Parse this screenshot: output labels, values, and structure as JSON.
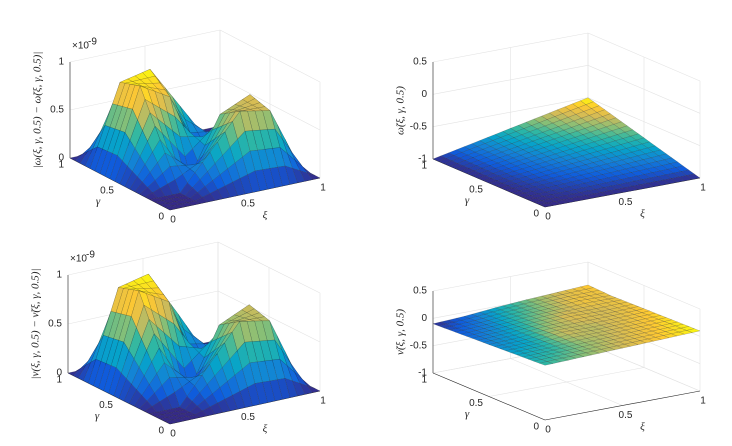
{
  "chart_data": [
    {
      "type": "surface",
      "zlabel": "|ω(ξ, γ, 0.5) − ω̃(ξ, γ, 0.5)|",
      "multiplier": {
        "base": "×10",
        "power": "-9"
      },
      "xlabel": "ξ",
      "ylabel": "γ",
      "x": [
        0,
        0.2,
        0.4,
        0.6,
        0.8,
        1
      ],
      "y": [
        0,
        0.2,
        0.4,
        0.6,
        0.8,
        1
      ],
      "z": [
        [
          0,
          0,
          0,
          0,
          0,
          0
        ],
        [
          0,
          0,
          0.36,
          0.72,
          0.66,
          0
        ],
        [
          0,
          0.45,
          0,
          0.58,
          0.72,
          0
        ],
        [
          0,
          0.9,
          0.72,
          0,
          0.36,
          0
        ],
        [
          0,
          0.83,
          0.9,
          0.45,
          0,
          0
        ],
        [
          0,
          0,
          0,
          0,
          0,
          0
        ]
      ],
      "xlim": [
        0,
        1
      ],
      "ylim": [
        0,
        1
      ],
      "zlim": [
        0,
        1
      ],
      "xticks": [
        0,
        0.5,
        1
      ],
      "yticks": [
        0,
        0.5,
        1
      ],
      "zticks": [
        0,
        0.5,
        1
      ]
    },
    {
      "type": "surface",
      "zlabel": "ω̃(ξ, γ, 0.5)",
      "xlabel": "ξ",
      "ylabel": "γ",
      "x": [
        0,
        0.2,
        0.4,
        0.6,
        0.8,
        1
      ],
      "y": [
        0,
        0.2,
        0.4,
        0.6,
        0.8,
        1
      ],
      "z": [
        [
          -1,
          -1,
          -1,
          -1,
          -1,
          -1
        ],
        [
          -1,
          -0.98,
          -0.96,
          -0.94,
          -0.92,
          -0.9
        ],
        [
          -1,
          -0.96,
          -0.92,
          -0.88,
          -0.84,
          -0.8
        ],
        [
          -1,
          -0.94,
          -0.88,
          -0.82,
          -0.76,
          -0.7
        ],
        [
          -1,
          -0.92,
          -0.84,
          -0.76,
          -0.68,
          -0.6
        ],
        [
          -1,
          -0.9,
          -0.8,
          -0.7,
          -0.6,
          -0.5
        ]
      ],
      "xlim": [
        0,
        1
      ],
      "ylim": [
        0,
        1
      ],
      "zlim": [
        -1,
        0.5
      ],
      "xticks": [
        0,
        0.5,
        1
      ],
      "yticks": [
        0,
        0.5,
        1
      ],
      "zticks": [
        -1,
        -0.5,
        0,
        0.5
      ]
    },
    {
      "type": "surface",
      "zlabel": "|ν(ξ, γ, 0.5) − ν̃(ξ, γ, 0.5)|",
      "multiplier": {
        "base": "×10",
        "power": "-9"
      },
      "xlabel": "ξ",
      "ylabel": "γ",
      "x": [
        0,
        0.2,
        0.4,
        0.6,
        0.8,
        1
      ],
      "y": [
        0,
        0.2,
        0.4,
        0.6,
        0.8,
        1
      ],
      "z": [
        [
          0,
          0,
          0,
          0,
          0,
          0
        ],
        [
          0,
          0,
          0.37,
          0.74,
          0.68,
          0
        ],
        [
          0,
          0.5,
          0,
          0.6,
          0.74,
          0
        ],
        [
          0,
          0.98,
          0.8,
          0,
          0.37,
          0
        ],
        [
          0,
          0.91,
          0.98,
          0.5,
          0,
          0
        ],
        [
          0,
          0,
          0,
          0,
          0,
          0
        ]
      ],
      "xlim": [
        0,
        1
      ],
      "ylim": [
        0,
        1
      ],
      "zlim": [
        0,
        1
      ],
      "xticks": [
        0,
        0.5,
        1
      ],
      "yticks": [
        0,
        0.5,
        1
      ],
      "zticks": [
        0,
        0.5,
        1
      ]
    },
    {
      "type": "surface",
      "zlabel": "ν̃(ξ, γ, 0.5)",
      "xlabel": "ξ",
      "ylabel": "γ",
      "x": [
        0,
        0.2,
        0.4,
        0.6,
        0.8,
        1
      ],
      "y": [
        0,
        0.2,
        0.4,
        0.6,
        0.8,
        1
      ],
      "z": [
        [
          0,
          0.02,
          0.04,
          0.06,
          0.08,
          0.1
        ],
        [
          -0.02,
          0,
          0.03,
          0.05,
          0.07,
          0.09
        ],
        [
          -0.04,
          -0.02,
          0.05,
          0.04,
          0.06,
          0.08
        ],
        [
          -0.06,
          -0.03,
          0.02,
          0.06,
          0.05,
          0.07
        ],
        [
          -0.08,
          -0.05,
          0,
          0.03,
          0.07,
          0.06
        ],
        [
          -0.1,
          -0.07,
          -0.02,
          0.02,
          0.05,
          0.08
        ]
      ],
      "xlim": [
        0,
        1
      ],
      "ylim": [
        0,
        1
      ],
      "zlim": [
        -1,
        0.5
      ],
      "xticks": [
        0,
        0.5,
        1
      ],
      "yticks": [
        0,
        0.5,
        1
      ],
      "zticks": [
        -1,
        -0.5,
        0,
        0.5
      ]
    }
  ]
}
